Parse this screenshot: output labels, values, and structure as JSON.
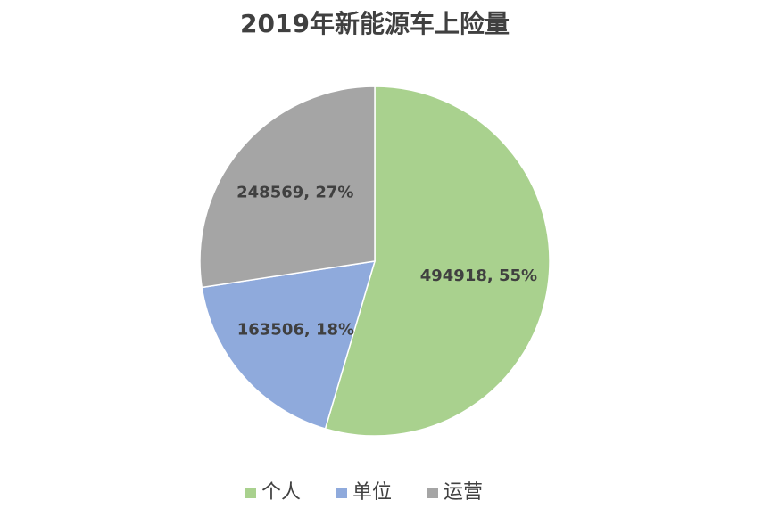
{
  "chart_data": {
    "type": "pie",
    "title": "2019年新能源车上险量",
    "categories": [
      "个人",
      "单位",
      "运营"
    ],
    "values": [
      494918,
      163506,
      248569
    ],
    "value_labels": [
      "494918, 55%",
      "163506, 18%",
      "248569, 27%"
    ],
    "colors": [
      "#a9d18e",
      "#8faadc",
      "#a5a5a5"
    ],
    "legend": "bottom"
  }
}
